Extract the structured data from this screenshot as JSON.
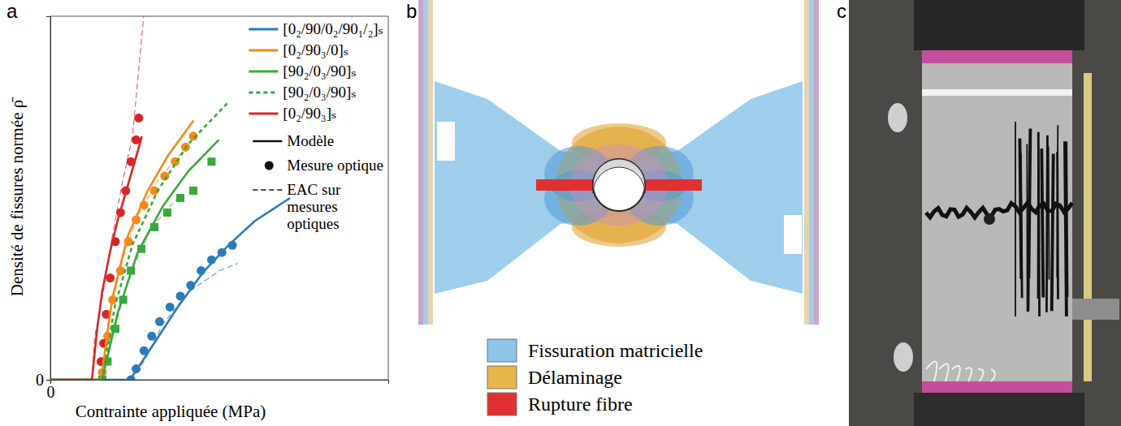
{
  "panel_labels": [
    "a",
    "b",
    "c"
  ],
  "chart_data": {
    "type": "line",
    "xlabel": "Contrainte appliquée (MPa)",
    "ylabel": "Densité de fissures normée ρ̄",
    "xlim": [
      0,
      13
    ],
    "ylim": [
      0,
      1
    ],
    "xticks": [
      0
    ],
    "yticks": [
      0
    ],
    "legend": "upper right",
    "series": [
      {
        "name": "[0₂/90/0₂/90₁/₂]ₛ",
        "type": "line",
        "line_style": "solid",
        "color": "#2b7bba",
        "x": [
          0,
          3.07,
          3.95,
          4.92,
          5.9,
          6.88,
          7.85,
          9.22
        ],
        "values": [
          0,
          0,
          0.096,
          0.202,
          0.298,
          0.372,
          0.436,
          0.5
        ]
      },
      {
        "name": "[0₂/90₃/0]ₛ",
        "type": "line",
        "line_style": "solid",
        "color": "#f28a1c",
        "x": [
          0,
          1.95,
          2.38,
          2.97,
          3.75,
          4.53,
          5.51
        ],
        "values": [
          0,
          0,
          0.223,
          0.394,
          0.521,
          0.617,
          0.713
        ]
      },
      {
        "name": "[90₂/0₃/90]ₛ",
        "type": "line",
        "line_style": "solid",
        "color": "#3aa83a",
        "x": [
          0,
          1.99,
          2.58,
          3.36,
          4.34,
          5.31,
          6.48
        ],
        "values": [
          0,
          0,
          0.181,
          0.351,
          0.479,
          0.574,
          0.66
        ]
      },
      {
        "name": "[90₂/0₃/90]ₛ",
        "type": "line",
        "line_style": "dashed",
        "color": "#3aa83a",
        "x": [
          0,
          1.99,
          2.48,
          3.16,
          4.14,
          5.31,
          6.88
        ],
        "values": [
          0,
          0,
          0.202,
          0.372,
          0.521,
          0.649,
          0.766
        ]
      },
      {
        "name": "[0₂/90₃]ₛ",
        "type": "line",
        "line_style": "solid",
        "color": "#d62728",
        "x": [
          0,
          1.6,
          1.8,
          2.0,
          2.29,
          2.58,
          2.97,
          3.36,
          3.52
        ],
        "values": [
          0,
          0,
          0.14,
          0.245,
          0.35,
          0.436,
          0.532,
          0.628,
          0.67
        ]
      },
      {
        "type": "scatter",
        "marker": "circle",
        "color": "#2b7bba",
        "x": [
          3.1,
          3.3,
          3.6,
          3.9,
          4.2,
          4.6,
          5.0,
          5.4,
          5.8,
          6.2,
          6.6,
          7.0
        ],
        "values": [
          0.0,
          0.03,
          0.08,
          0.12,
          0.16,
          0.2,
          0.23,
          0.26,
          0.3,
          0.33,
          0.35,
          0.37
        ]
      },
      {
        "type": "scatter",
        "marker": "circle",
        "color": "#f28a1c",
        "x": [
          2.0,
          2.2,
          2.4,
          2.7,
          3.0,
          3.3,
          3.6,
          4.0,
          4.4,
          4.8,
          5.2,
          5.5
        ],
        "values": [
          0.02,
          0.12,
          0.22,
          0.3,
          0.38,
          0.44,
          0.48,
          0.52,
          0.56,
          0.6,
          0.64,
          0.67
        ]
      },
      {
        "type": "scatter",
        "marker": "square",
        "color": "#3aa83a",
        "x": [
          2.0,
          2.2,
          2.5,
          2.8,
          3.1,
          3.5,
          4.0,
          4.5,
          5.0,
          5.5,
          6.2
        ],
        "values": [
          0,
          0.05,
          0.14,
          0.22,
          0.3,
          0.36,
          0.42,
          0.46,
          0.5,
          0.52,
          0.6
        ]
      },
      {
        "type": "scatter",
        "marker": "circle",
        "color": "#d62728",
        "x": [
          1.95,
          2.05,
          2.15,
          2.3,
          2.5,
          2.7,
          2.9,
          3.1,
          3.3,
          3.4
        ],
        "values": [
          0.05,
          0.1,
          0.18,
          0.28,
          0.38,
          0.46,
          0.52,
          0.6,
          0.66,
          0.72
        ]
      },
      {
        "type": "line",
        "line_style": "dashed",
        "color": "#2b7bba",
        "x": [
          3.07,
          3.6,
          4.3,
          5.3,
          6.5,
          7.2
        ],
        "values": [
          0,
          0.05,
          0.15,
          0.24,
          0.3,
          0.32
        ]
      },
      {
        "type": "line",
        "line_style": "dashed",
        "color": "#f28a1c",
        "x": [
          1.95,
          2.2,
          2.77,
          3.36,
          4.14,
          5.12
        ],
        "values": [
          0,
          0.15,
          0.33,
          0.45,
          0.55,
          0.63
        ]
      },
      {
        "type": "line",
        "line_style": "dashed",
        "color": "#3aa83a",
        "x": [
          1.99,
          2.4,
          3.0,
          3.9,
          4.9
        ],
        "values": [
          0,
          0.12,
          0.28,
          0.42,
          0.5
        ]
      },
      {
        "type": "line",
        "line_style": "dashed",
        "color": "#d62728",
        "x": [
          1.6,
          1.7,
          1.99,
          2.38,
          2.77,
          3.16,
          3.59
        ],
        "values": [
          0,
          0.117,
          0.223,
          0.394,
          0.543,
          0.67,
          1.0
        ]
      }
    ],
    "style_legend": [
      {
        "name": "Modèle",
        "line_style": "solid"
      },
      {
        "name": "Mesure optique",
        "marker": "circle"
      },
      {
        "name": "EAC sur mesures optiques",
        "line_style": "dashed"
      }
    ]
  },
  "damage_map": {
    "legend": [
      {
        "name": "Fissuration matricielle",
        "color": "#8ec5ea"
      },
      {
        "name": "Délaminage",
        "color": "#e8b54a"
      },
      {
        "name": "Rupture fibre",
        "color": "#e03030"
      }
    ]
  }
}
